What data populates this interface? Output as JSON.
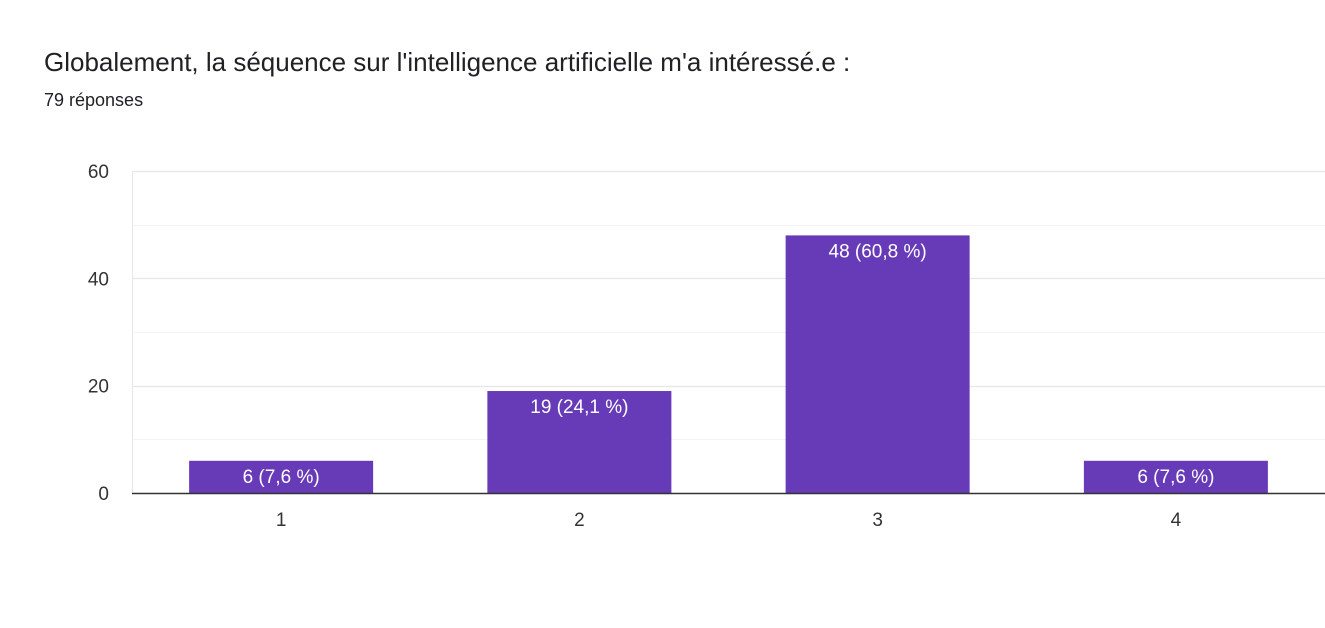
{
  "question": {
    "title": "Globalement, la séquence sur l'intelligence artificielle m'a intéressé.e :",
    "responses": "79 réponses"
  },
  "colors": {
    "bar": "#673ab7",
    "grid_major": "#e6e6e6",
    "grid_minor": "#f3f3f3",
    "baseline": "#333333",
    "tick_text": "#333333",
    "bar_label_text": "#ffffff"
  },
  "chart_data": {
    "type": "bar",
    "categories": [
      "1",
      "2",
      "3",
      "4"
    ],
    "values": [
      6,
      19,
      48,
      6
    ],
    "data_labels": [
      "6 (7,6 %)",
      "19 (24,1 %)",
      "48 (60,8 %)",
      "6 (7,6 %)"
    ],
    "title": "Globalement, la séquence sur l'intelligence artificielle m'a intéressé.e :",
    "subtitle": "79 réponses",
    "xlabel": "",
    "ylabel": "",
    "ylim": [
      0,
      60
    ],
    "yticks": [
      0,
      20,
      40,
      60
    ],
    "grid": true,
    "legend": "none"
  }
}
